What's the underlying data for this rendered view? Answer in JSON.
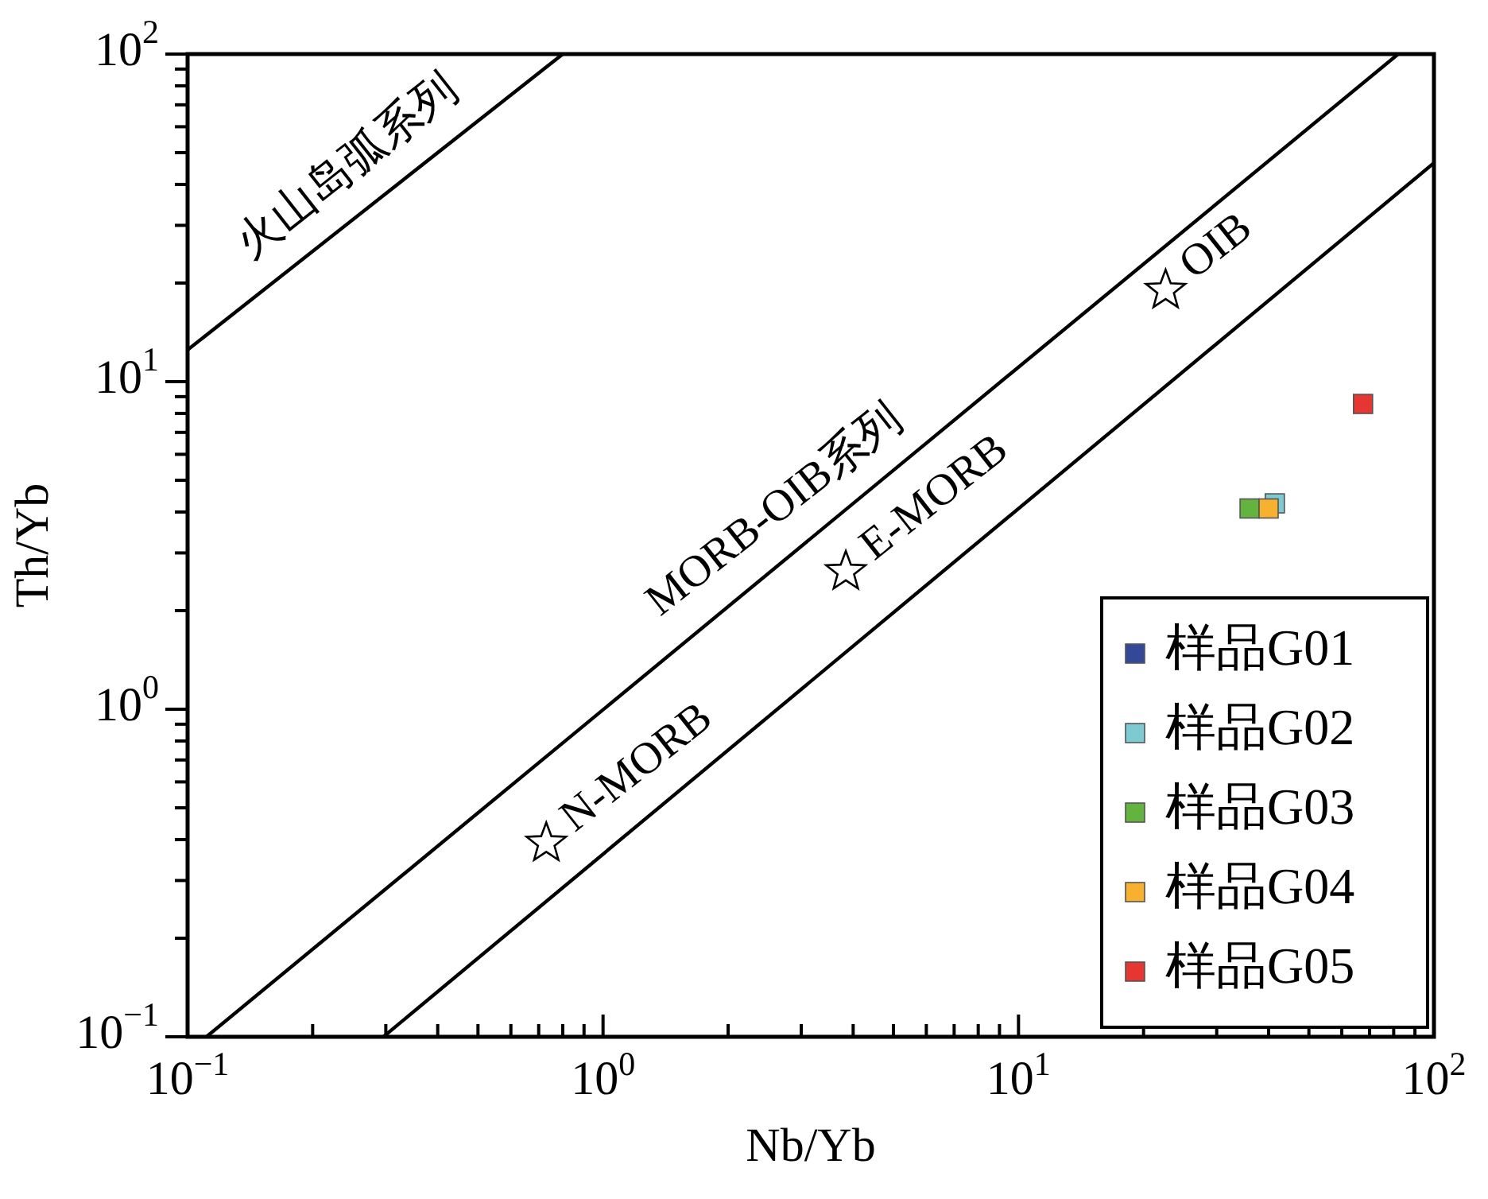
{
  "chart_data": {
    "type": "scatter",
    "xlabel": "Nb/Yb",
    "ylabel": "Th/Yb",
    "log": "xy",
    "grid": false,
    "legend": "bottom right",
    "xlim": [
      0.1,
      100
    ],
    "ylim": [
      0.1,
      100
    ],
    "xticks": [
      {
        "value": 0.1,
        "label": "10$^{−1}$"
      },
      {
        "value": 0.2,
        "label": null
      },
      {
        "value": 0.3,
        "label": null
      },
      {
        "value": 0.4,
        "label": null
      },
      {
        "value": 0.5,
        "label": null
      },
      {
        "value": 0.6,
        "label": null
      },
      {
        "value": 0.7,
        "label": null
      },
      {
        "value": 0.8,
        "label": null
      },
      {
        "value": 0.9,
        "label": null
      },
      {
        "value": 1,
        "label": "10$^{0}$"
      },
      {
        "value": 2,
        "label": null
      },
      {
        "value": 3,
        "label": null
      },
      {
        "value": 4,
        "label": null
      },
      {
        "value": 5,
        "label": null
      },
      {
        "value": 6,
        "label": null
      },
      {
        "value": 7,
        "label": null
      },
      {
        "value": 8,
        "label": null
      },
      {
        "value": 9,
        "label": null
      },
      {
        "value": 10,
        "label": "10$^{1}$"
      },
      {
        "value": 20,
        "label": null
      },
      {
        "value": 30,
        "label": null
      },
      {
        "value": 40,
        "label": null
      },
      {
        "value": 50,
        "label": null
      },
      {
        "value": 60,
        "label": null
      },
      {
        "value": 70,
        "label": null
      },
      {
        "value": 80,
        "label": null
      },
      {
        "value": 90,
        "label": null
      },
      {
        "value": 100,
        "label": "10$^{2}$"
      }
    ],
    "yticks": [
      {
        "value": 0.1,
        "label": "10$^{−1}$"
      },
      {
        "value": 0.2,
        "label": null
      },
      {
        "value": 0.3,
        "label": null
      },
      {
        "value": 0.4,
        "label": null
      },
      {
        "value": 0.5,
        "label": null
      },
      {
        "value": 0.6,
        "label": null
      },
      {
        "value": 0.7,
        "label": null
      },
      {
        "value": 0.8,
        "label": null
      },
      {
        "value": 0.9,
        "label": null
      },
      {
        "value": 1,
        "label": "10$^{0}$"
      },
      {
        "value": 2,
        "label": null
      },
      {
        "value": 3,
        "label": null
      },
      {
        "value": 4,
        "label": null
      },
      {
        "value": 5,
        "label": null
      },
      {
        "value": 6,
        "label": null
      },
      {
        "value": 7,
        "label": null
      },
      {
        "value": 8,
        "label": null
      },
      {
        "value": 9,
        "label": null
      },
      {
        "value": 10,
        "label": "10$^{1}$"
      },
      {
        "value": 20,
        "label": null
      },
      {
        "value": 30,
        "label": null
      },
      {
        "value": 40,
        "label": null
      },
      {
        "value": 50,
        "label": null
      },
      {
        "value": 60,
        "label": null
      },
      {
        "value": 70,
        "label": null
      },
      {
        "value": 80,
        "label": null
      },
      {
        "value": 90,
        "label": null
      },
      {
        "value": 100,
        "label": "10$^{2}$"
      }
    ],
    "series": [
      {
        "type": "line",
        "name": "火山岛弧系列",
        "color": "#000000",
        "marker": "none",
        "line_style": "solid",
        "x": [
          0.1,
          0.8
        ],
        "values": [
          12.5,
          100
        ]
      },
      {
        "type": "line",
        "name": "MORB-OIB系列",
        "color": "#000000",
        "marker": "none",
        "line_style": "solid",
        "x": [
          0.111,
          82
        ],
        "values": [
          0.1,
          100
        ]
      },
      {
        "type": "line",
        "color": "#000000",
        "marker": "none",
        "line_style": "solid",
        "x": [
          0.296,
          100
        ],
        "values": [
          0.1,
          46.5
        ]
      },
      {
        "type": "scatter",
        "name": "N-MORB",
        "color": "#ffffff",
        "marker": "star",
        "x": [
          0.73
        ],
        "values": [
          0.39
        ]
      },
      {
        "type": "scatter",
        "name": "E-MORB",
        "color": "#ffffff",
        "marker": "star",
        "x": [
          3.84
        ],
        "values": [
          2.63
        ]
      },
      {
        "type": "scatter",
        "name": "OIB",
        "color": "#ffffff",
        "marker": "star",
        "x": [
          22.6
        ],
        "values": [
          19
        ]
      },
      {
        "name": "样品G01",
        "color": "#34489a",
        "marker": "square",
        "x": [
          null
        ],
        "values": [
          null
        ]
      },
      {
        "name": "样品G02",
        "color": "#7ecad3",
        "marker": "square",
        "x": [
          41.4
        ],
        "values": [
          4.25
        ]
      },
      {
        "name": "样品G03",
        "color": "#62b43e",
        "marker": "square",
        "x": [
          36
        ],
        "values": [
          4.1
        ]
      },
      {
        "name": "样品G04",
        "color": "#f8b12e",
        "marker": "square",
        "x": [
          40
        ],
        "values": [
          4.1
        ]
      },
      {
        "name": "样品G05",
        "color": "#e53632",
        "marker": "square",
        "x": [
          67.5
        ],
        "values": [
          8.55
        ]
      }
    ]
  }
}
